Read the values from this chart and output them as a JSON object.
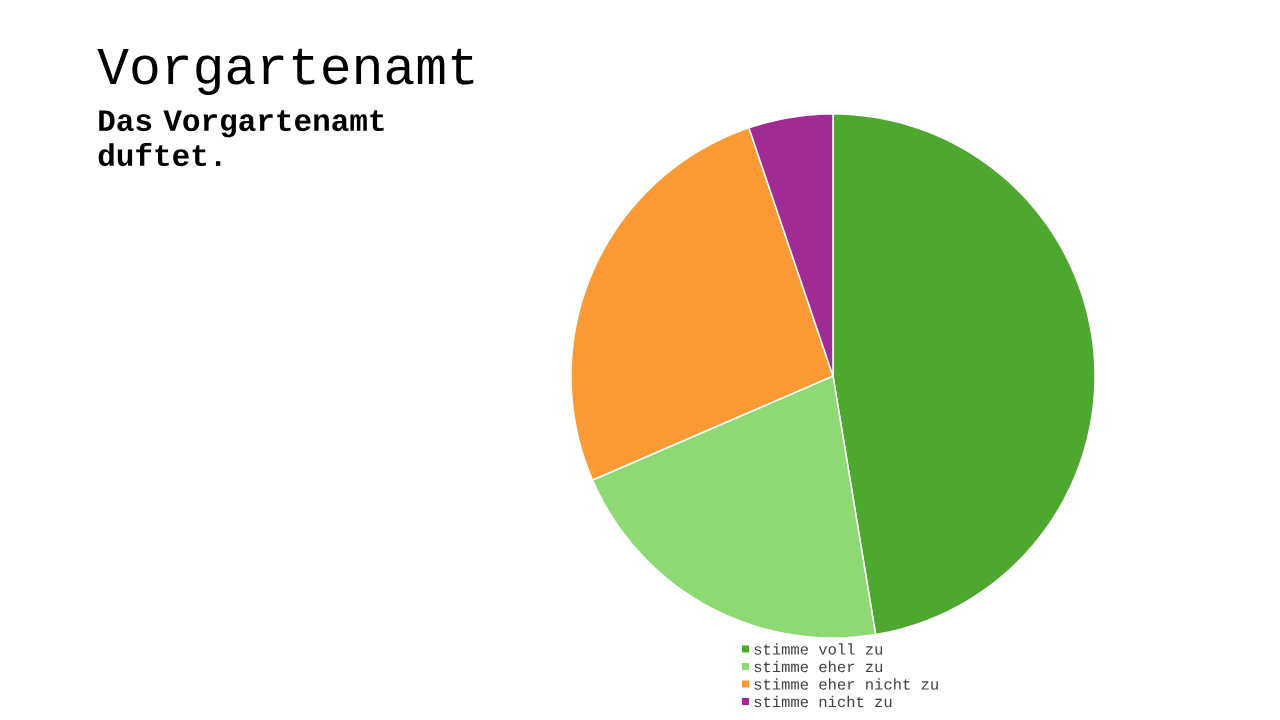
{
  "chart_data": {
    "type": "pie",
    "title": "Vorgartenamt",
    "subtitle": "Das Vorgartenamt duftet.",
    "categories": [
      "stimme voll zu",
      "stimme eher zu",
      "stimme eher nicht zu",
      "stimme nicht zu"
    ],
    "values": [
      47.4,
      21.1,
      26.3,
      5.2
    ],
    "colors": [
      "#4ea72e",
      "#8fd974",
      "#fb9a35",
      "#a02b93"
    ],
    "legend": "bottom"
  }
}
